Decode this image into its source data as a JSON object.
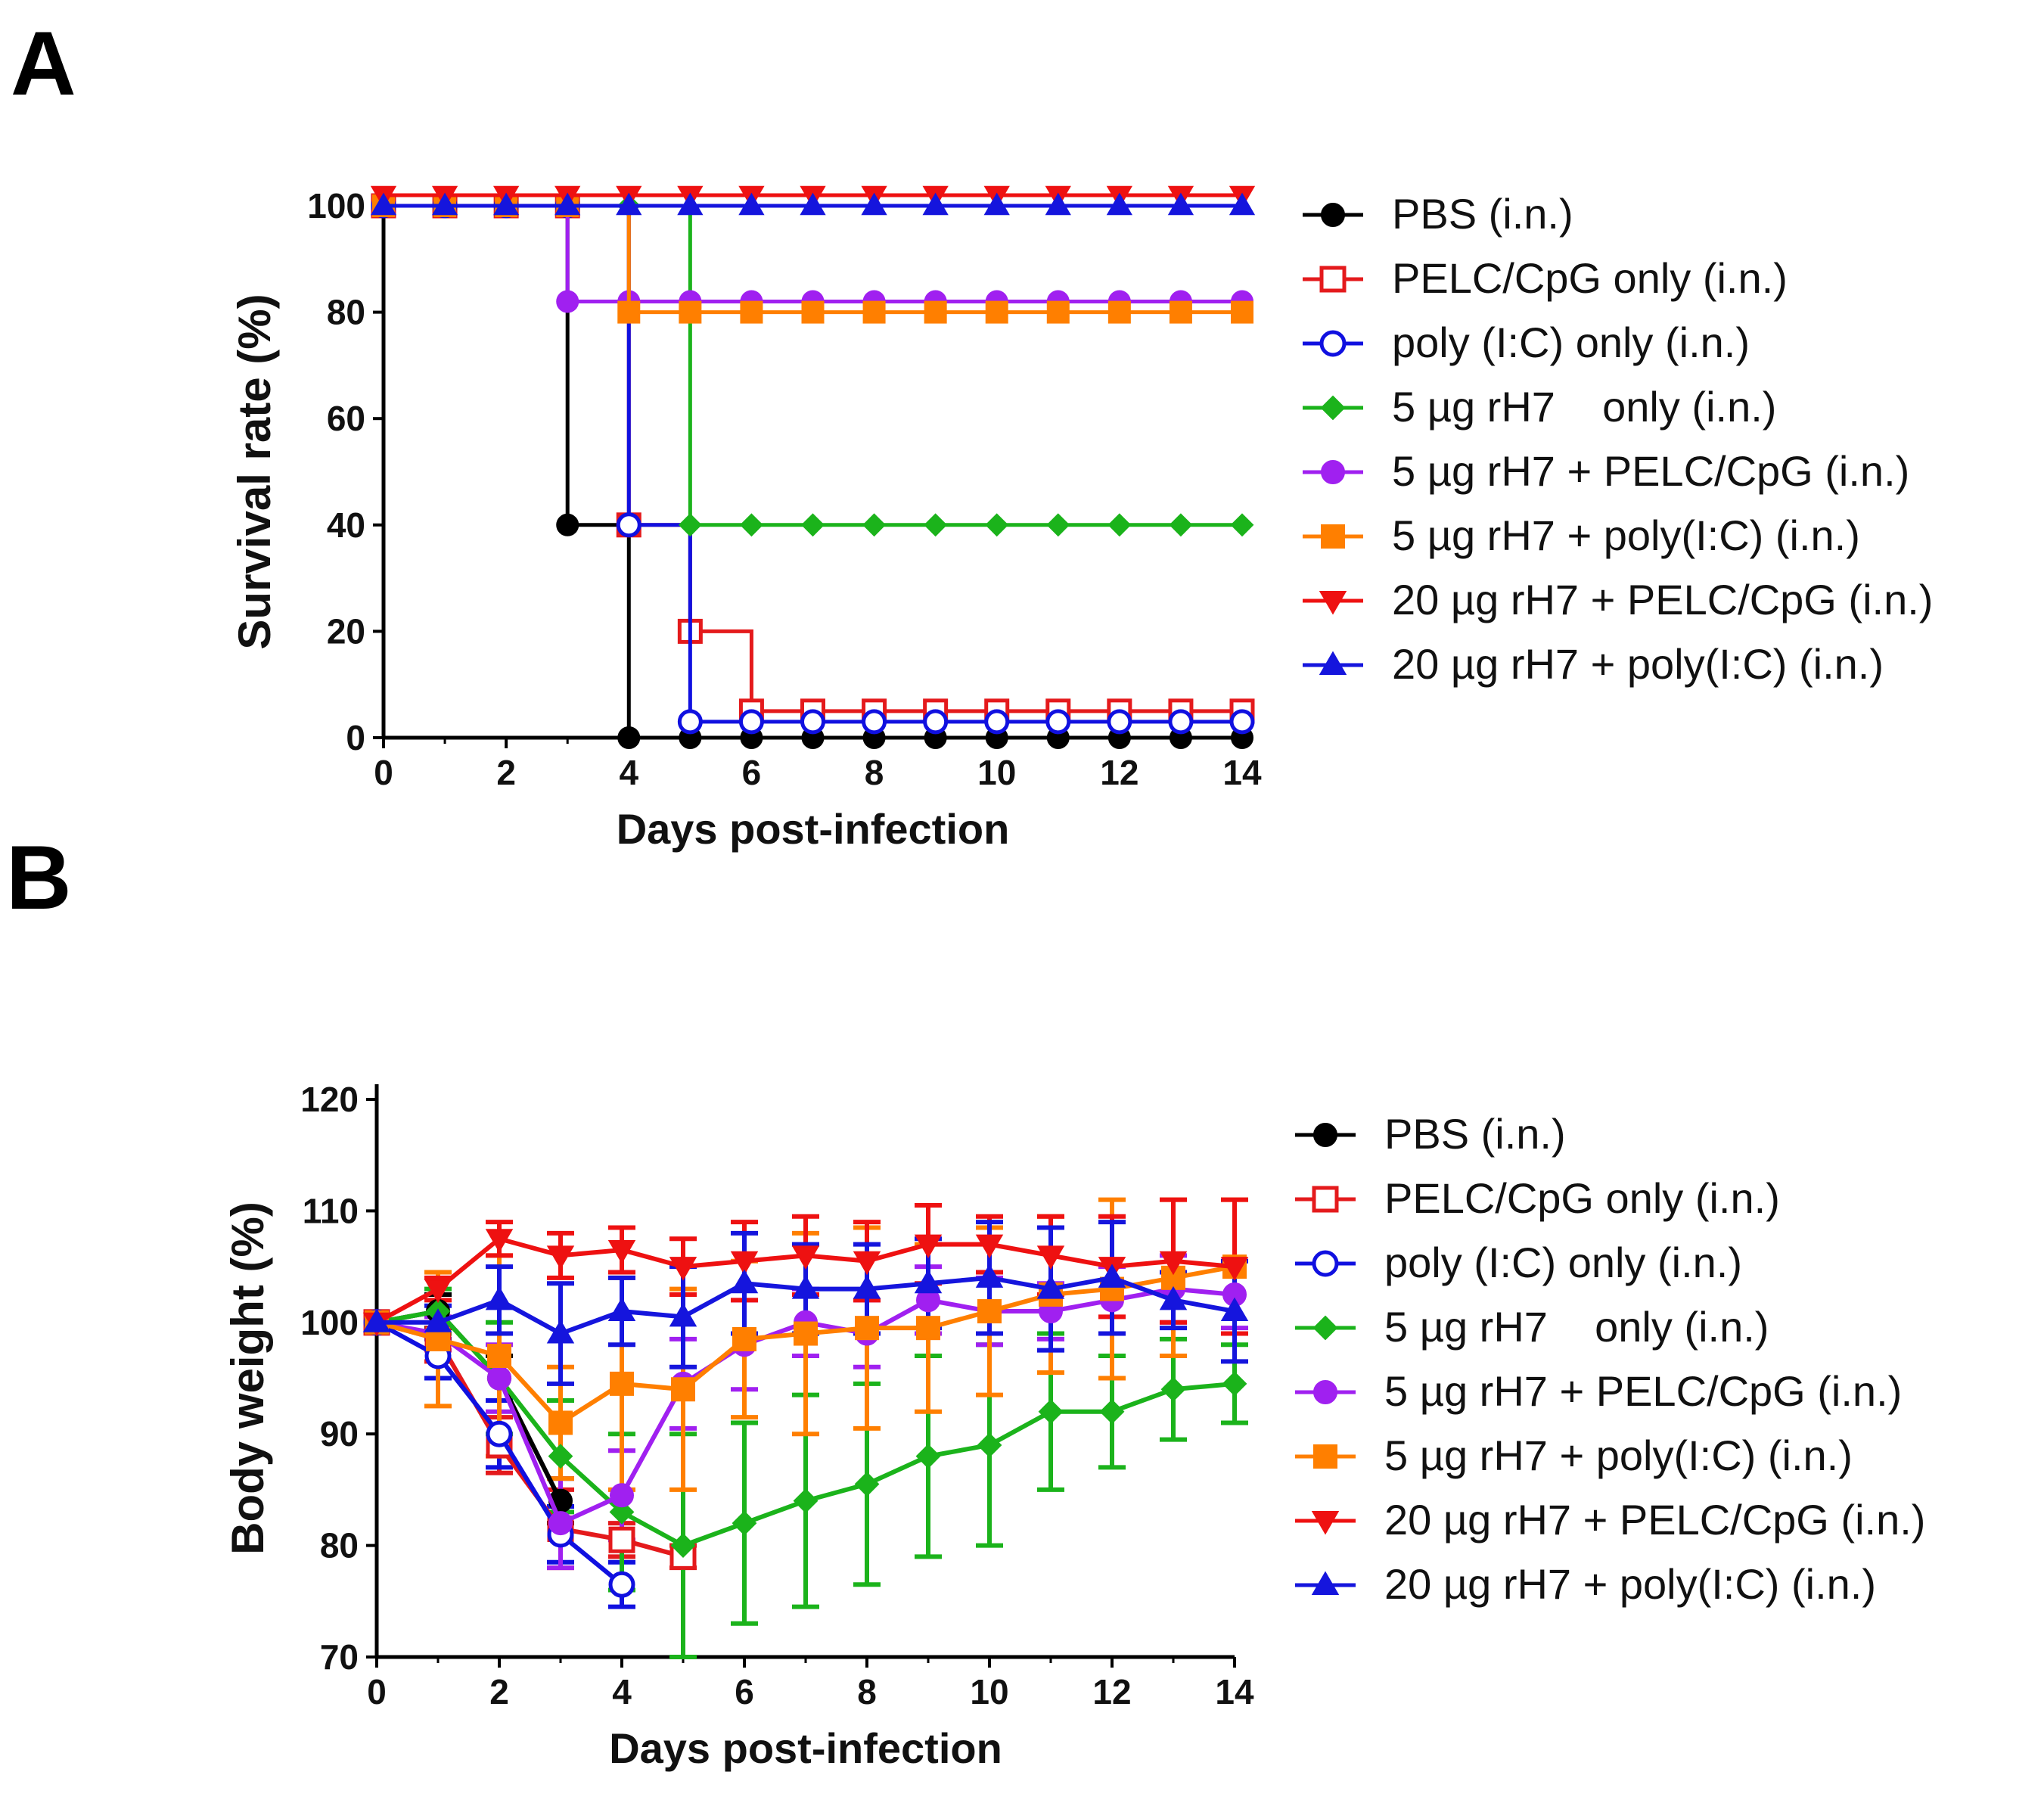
{
  "panels": {
    "a_label": "A",
    "b_label": "B"
  },
  "legend_entries": [
    {
      "label": "PBS (i.n.)",
      "color": "#000000",
      "marker": "circle",
      "fill": "filled"
    },
    {
      "label": "PELC/CpG only (i.n.)",
      "color": "#e41a1c",
      "marker": "square",
      "fill": "open"
    },
    {
      "label": "poly (I:C) only (i.n.)",
      "color": "#1010e0",
      "marker": "circle",
      "fill": "open"
    },
    {
      "label": "5 µg rH7    only (i.n.)",
      "color": "#1bb31b",
      "marker": "diamond",
      "fill": "filled"
    },
    {
      "label": "5 µg rH7 + PELC/CpG (i.n.)",
      "color": "#a020f0",
      "marker": "circle",
      "fill": "filled"
    },
    {
      "label": "5 µg rH7 + poly(I:C) (i.n.)",
      "color": "#ff7f00",
      "marker": "square",
      "fill": "filled"
    },
    {
      "label": "20 µg rH7 + PELC/CpG (i.n.)",
      "color": "#ee1111",
      "marker": "triangle-down",
      "fill": "filled"
    },
    {
      "label": "20 µg rH7 + poly(I:C) (i.n.)",
      "color": "#1515dd",
      "marker": "triangle-up",
      "fill": "filled"
    }
  ],
  "chart_data": [
    {
      "type": "line",
      "step": true,
      "panel": "A",
      "title": "",
      "xlabel": "Days post-infection",
      "ylabel": "Survival rate (%)",
      "xlim": [
        0,
        14
      ],
      "ylim": [
        0,
        100
      ],
      "xticks": [
        0,
        2,
        4,
        6,
        8,
        10,
        12,
        14
      ],
      "yticks": [
        0,
        20,
        40,
        60,
        80,
        100
      ],
      "x": [
        0,
        1,
        2,
        3,
        4,
        5,
        6,
        7,
        8,
        9,
        10,
        11,
        12,
        13,
        14
      ],
      "series": [
        {
          "name": "PBS (i.n.)",
          "values": [
            100,
            100,
            100,
            40,
            0,
            0,
            0,
            0,
            0,
            0,
            0,
            0,
            0,
            0,
            0
          ]
        },
        {
          "name": "PELC/CpG only (i.n.)",
          "values": [
            100,
            100,
            100,
            100,
            40,
            20,
            5,
            5,
            5,
            5,
            5,
            5,
            5,
            5,
            5
          ]
        },
        {
          "name": "poly (I:C) only (i.n.)",
          "values": [
            100,
            100,
            100,
            100,
            40,
            3,
            3,
            3,
            3,
            3,
            3,
            3,
            3,
            3,
            3
          ]
        },
        {
          "name": "5 µg rH7    only (i.n.)",
          "values": [
            100,
            100,
            100,
            100,
            100,
            40,
            40,
            40,
            40,
            40,
            40,
            40,
            40,
            40,
            40
          ]
        },
        {
          "name": "5 µg rH7 + PELC/CpG (i.n.)",
          "values": [
            100,
            100,
            100,
            82,
            82,
            82,
            82,
            82,
            82,
            82,
            82,
            82,
            82,
            82,
            82
          ]
        },
        {
          "name": "5 µg rH7 + poly(I:C) (i.n.)",
          "values": [
            100,
            100,
            100,
            100,
            80,
            80,
            80,
            80,
            80,
            80,
            80,
            80,
            80,
            80,
            80
          ]
        },
        {
          "name": "20 µg rH7 + PELC/CpG (i.n.)",
          "values": [
            102,
            102,
            102,
            102,
            102,
            102,
            102,
            102,
            102,
            102,
            102,
            102,
            102,
            102,
            102
          ]
        },
        {
          "name": "20 µg rH7 + poly(I:C) (i.n.)",
          "values": [
            100,
            100,
            100,
            100,
            100,
            100,
            100,
            100,
            100,
            100,
            100,
            100,
            100,
            100,
            100
          ]
        }
      ]
    },
    {
      "type": "line",
      "panel": "B",
      "title": "",
      "xlabel": "Days post-infection",
      "ylabel": "Body weight (%)",
      "xlim": [
        0,
        14
      ],
      "ylim": [
        70,
        120
      ],
      "xticks": [
        0,
        2,
        4,
        6,
        8,
        10,
        12,
        14
      ],
      "yticks": [
        70,
        80,
        90,
        100,
        110,
        120
      ],
      "series": [
        {
          "name": "PBS (i.n.)",
          "x": [
            0,
            1,
            2,
            3
          ],
          "values": [
            100,
            101,
            95,
            84
          ],
          "err": [
            0,
            1.5,
            2,
            2
          ]
        },
        {
          "name": "PELC/CpG only (i.n.)",
          "x": [
            0,
            1,
            2,
            3,
            4,
            5
          ],
          "values": [
            100,
            98.5,
            89,
            81.5,
            80.5,
            79
          ],
          "err": [
            0,
            2,
            2.5,
            3.5,
            1.5,
            1
          ]
        },
        {
          "name": "poly (I:C) only (i.n.)",
          "x": [
            0,
            1,
            2,
            3,
            4
          ],
          "values": [
            100,
            97,
            90,
            81,
            76.5
          ],
          "err": [
            0,
            2,
            3,
            2.5,
            2
          ]
        },
        {
          "name": "5 µg rH7    only (i.n.)",
          "x": [
            0,
            1,
            2,
            3,
            4,
            5,
            6,
            7,
            8,
            9,
            10,
            11,
            12,
            13,
            14
          ],
          "values": [
            100,
            101,
            95,
            88,
            83,
            80,
            82,
            84,
            85.5,
            88,
            89,
            92,
            92,
            94,
            94.5
          ],
          "err": [
            0,
            2,
            5,
            5,
            7,
            10,
            9,
            9.5,
            9,
            9,
            9,
            7,
            5,
            4.5,
            3.5
          ]
        },
        {
          "name": "5 µg rH7 + PELC/CpG (i.n.)",
          "x": [
            0,
            1,
            2,
            3,
            4,
            5,
            6,
            7,
            8,
            9,
            10,
            11,
            12,
            13,
            14
          ],
          "values": [
            100,
            99,
            95,
            82,
            84.5,
            94.5,
            98,
            100,
            99,
            102,
            101,
            101,
            102,
            103,
            102.5
          ],
          "err": [
            0,
            1.5,
            3,
            4,
            4,
            4,
            4,
            3,
            3,
            3,
            3,
            2.5,
            3,
            3,
            3
          ]
        },
        {
          "name": "5 µg rH7 + poly(I:C) (i.n.)",
          "x": [
            0,
            1,
            2,
            3,
            4,
            5,
            6,
            7,
            8,
            9,
            10,
            11,
            12,
            13,
            14
          ],
          "values": [
            100,
            98.5,
            97,
            91,
            94.5,
            94,
            98.5,
            99,
            99.5,
            99.5,
            101,
            102.5,
            103,
            104,
            105
          ],
          "err": [
            0,
            6,
            9,
            5,
            9.5,
            9,
            7,
            9,
            9,
            7.5,
            7.5,
            7,
            8,
            7,
            6
          ]
        },
        {
          "name": "20 µg rH7 + PELC/CpG (i.n.)",
          "x": [
            0,
            1,
            2,
            3,
            4,
            5,
            6,
            7,
            8,
            9,
            10,
            11,
            12,
            13,
            14
          ],
          "values": [
            100,
            103,
            107.5,
            106,
            106.5,
            105,
            105.5,
            106,
            105.5,
            107,
            107,
            106,
            105,
            105.5,
            105
          ],
          "err": [
            0,
            1,
            1.5,
            2,
            2,
            2.5,
            3.5,
            3.5,
            3.5,
            3.5,
            2.5,
            3.5,
            4.5,
            5.5,
            6
          ]
        },
        {
          "name": "20 µg rH7 + poly(I:C) (i.n.)",
          "x": [
            0,
            1,
            2,
            3,
            4,
            5,
            6,
            7,
            8,
            9,
            10,
            11,
            12,
            13,
            14
          ],
          "values": [
            100,
            100,
            102,
            99,
            101,
            100.5,
            103.5,
            103,
            103,
            103.5,
            104,
            103,
            104,
            102,
            101
          ],
          "err": [
            0,
            1.5,
            3,
            4.5,
            3,
            4.5,
            4.5,
            4,
            4,
            4,
            5,
            5.5,
            5,
            2.5,
            4.5
          ]
        }
      ]
    }
  ]
}
